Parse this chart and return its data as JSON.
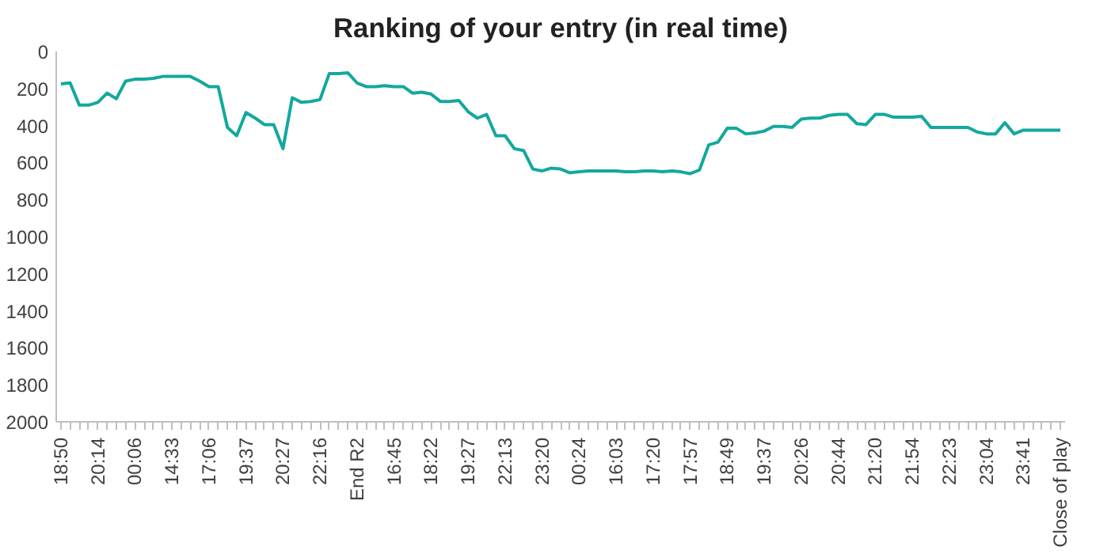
{
  "chart_data": {
    "type": "line",
    "title": "Ranking of your entry (in real time)",
    "categories": [
      "18:50",
      null,
      null,
      null,
      "20:14",
      null,
      null,
      null,
      "00:06",
      null,
      null,
      null,
      "14:33",
      null,
      null,
      null,
      "17:06",
      null,
      null,
      null,
      "19:37",
      null,
      null,
      null,
      "20:27",
      null,
      null,
      null,
      "22:16",
      null,
      null,
      null,
      "End R2",
      null,
      null,
      null,
      "16:45",
      null,
      null,
      null,
      "18:22",
      null,
      null,
      null,
      "19:27",
      null,
      null,
      null,
      "22:13",
      null,
      null,
      null,
      "23:20",
      null,
      null,
      null,
      "00:24",
      null,
      null,
      null,
      "16:03",
      null,
      null,
      null,
      "17:20",
      null,
      null,
      null,
      "17:57",
      null,
      null,
      null,
      "18:49",
      null,
      null,
      null,
      "19:37",
      null,
      null,
      null,
      "20:26",
      null,
      null,
      null,
      "20:44",
      null,
      null,
      null,
      "21:20",
      null,
      null,
      null,
      "21:54",
      null,
      null,
      null,
      "22:23",
      null,
      null,
      null,
      "23:04",
      null,
      null,
      null,
      "23:41",
      null,
      null,
      null,
      "Close of play"
    ],
    "series": [
      {
        "color": "#13a89e",
        "values": [
          175,
          170,
          290,
          290,
          275,
          225,
          255,
          160,
          150,
          150,
          145,
          135,
          135,
          135,
          135,
          160,
          190,
          190,
          410,
          455,
          330,
          360,
          395,
          395,
          525,
          250,
          275,
          270,
          260,
          120,
          120,
          115,
          170,
          190,
          190,
          185,
          190,
          190,
          225,
          220,
          230,
          270,
          270,
          265,
          325,
          360,
          340,
          455,
          455,
          525,
          535,
          635,
          645,
          630,
          635,
          655,
          650,
          645,
          645,
          645,
          645,
          650,
          650,
          645,
          645,
          650,
          645,
          650,
          660,
          640,
          505,
          490,
          415,
          415,
          445,
          440,
          430,
          405,
          405,
          410,
          365,
          360,
          360,
          345,
          340,
          340,
          390,
          395,
          340,
          340,
          355,
          355,
          355,
          350,
          410,
          410,
          410,
          410,
          410,
          435,
          445,
          445,
          385,
          445,
          425,
          425,
          425,
          425,
          425
        ]
      }
    ],
    "ylim": [
      2000,
      0
    ],
    "yticks": [
      0,
      200,
      400,
      600,
      800,
      1000,
      1200,
      1400,
      1600,
      1800,
      2000
    ],
    "grid": false,
    "marker": "none",
    "line_style": "solid"
  }
}
